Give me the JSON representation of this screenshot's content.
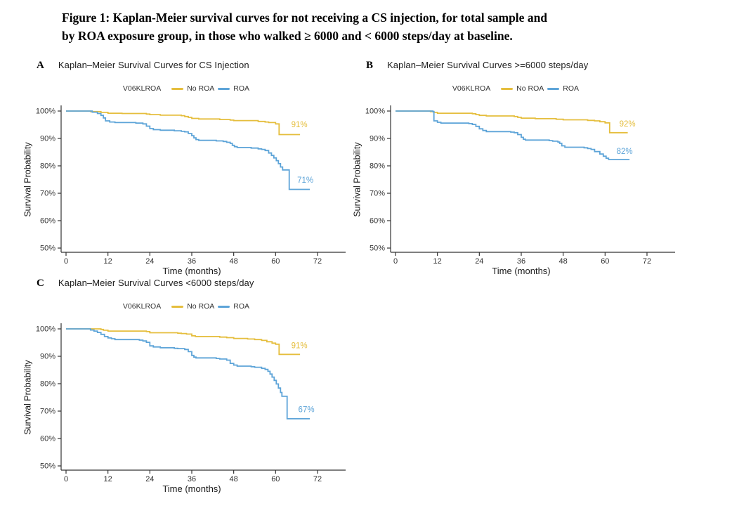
{
  "figure": {
    "title_lines": [
      "Figure 1: Kaplan-Meier survival curves for not receiving a CS injection, for total sample and",
      "by ROA exposure group, in those who walked ≥ 6000 and < 6000 steps/day at baseline."
    ]
  },
  "colors": {
    "no_roa": "#E5BE3D",
    "roa": "#5DA4D8",
    "axis": "#333333",
    "text": "#1a1a1a"
  },
  "chart_data": [
    {
      "type": "line",
      "subtype": "kaplan-meier-step",
      "panel_label": "A",
      "title": "Kaplan–Meier Survival Curves for CS Injection",
      "legend_title": "V06KLROA",
      "legend_position": "top",
      "grid": false,
      "xlabel": "Time (months)",
      "ylabel": "Survival Probability",
      "xlim": [
        0,
        72
      ],
      "ylim": [
        50,
        100
      ],
      "xticks": [
        0,
        12,
        24,
        36,
        48,
        60,
        72
      ],
      "yticks": [
        100,
        90,
        80,
        70,
        60,
        50
      ],
      "ytick_labels": [
        "100%",
        "90%",
        "80%",
        "70%",
        "60%",
        "50%"
      ],
      "series": [
        {
          "name": "No ROA",
          "color": "#E5BE3D",
          "annotation": {
            "label": "91%",
            "x": 66.8,
            "y": 95.0
          },
          "steps": [
            [
              0,
              100
            ],
            [
              7,
              99.8
            ],
            [
              10,
              99.5
            ],
            [
              12,
              99.2
            ],
            [
              16,
              99.1
            ],
            [
              23,
              98.9
            ],
            [
              24,
              98.7
            ],
            [
              27,
              98.5
            ],
            [
              33,
              98.3
            ],
            [
              34,
              98.0
            ],
            [
              35,
              97.7
            ],
            [
              36,
              97.3
            ],
            [
              38,
              97.1
            ],
            [
              44,
              96.9
            ],
            [
              47,
              96.7
            ],
            [
              48,
              96.5
            ],
            [
              55,
              96.2
            ],
            [
              57,
              96.0
            ],
            [
              58,
              95.8
            ],
            [
              60,
              95.3
            ],
            [
              61,
              91.4
            ],
            [
              67,
              91.4
            ]
          ]
        },
        {
          "name": "ROA",
          "color": "#5DA4D8",
          "annotation": {
            "label": "71%",
            "x": 68.5,
            "y": 74.8
          },
          "steps": [
            [
              0,
              100
            ],
            [
              7.5,
              99.6
            ],
            [
              9,
              99.1
            ],
            [
              10,
              98.4
            ],
            [
              10.7,
              97.5
            ],
            [
              11.3,
              96.4
            ],
            [
              12.5,
              96.0
            ],
            [
              14,
              95.8
            ],
            [
              20,
              95.6
            ],
            [
              22,
              95.3
            ],
            [
              23,
              94.5
            ],
            [
              24,
              93.6
            ],
            [
              25,
              93.2
            ],
            [
              27,
              93.0
            ],
            [
              31,
              92.8
            ],
            [
              33,
              92.6
            ],
            [
              34,
              92.4
            ],
            [
              35,
              91.8
            ],
            [
              36,
              91.0
            ],
            [
              36.6,
              90.2
            ],
            [
              37.2,
              89.6
            ],
            [
              38,
              89.3
            ],
            [
              43,
              89.1
            ],
            [
              45,
              88.9
            ],
            [
              46,
              88.6
            ],
            [
              47,
              88.2
            ],
            [
              47.6,
              87.5
            ],
            [
              48.2,
              87.0
            ],
            [
              49,
              86.7
            ],
            [
              53,
              86.5
            ],
            [
              55,
              86.2
            ],
            [
              56,
              86.0
            ],
            [
              57,
              85.6
            ],
            [
              58,
              84.7
            ],
            [
              58.8,
              83.8
            ],
            [
              59.5,
              82.9
            ],
            [
              60.2,
              81.9
            ],
            [
              60.8,
              80.8
            ],
            [
              61.4,
              79.6
            ],
            [
              62,
              78.5
            ],
            [
              63.5,
              78.5
            ],
            [
              63.9,
              71.4
            ],
            [
              69.8,
              71.4
            ]
          ]
        }
      ]
    },
    {
      "type": "line",
      "subtype": "kaplan-meier-step",
      "panel_label": "B",
      "title": "Kaplan–Meier Survival Curves >=6000 steps/day",
      "legend_title": "V06KLROA",
      "legend_position": "top",
      "grid": false,
      "xlabel": "Time (months)",
      "ylabel": "Survival Probability",
      "xlim": [
        0,
        72
      ],
      "ylim": [
        50,
        100
      ],
      "xticks": [
        0,
        12,
        24,
        36,
        48,
        60,
        72
      ],
      "yticks": [
        100,
        90,
        80,
        70,
        60,
        50
      ],
      "ytick_labels": [
        "100%",
        "90%",
        "80%",
        "70%",
        "60%",
        "50%"
      ],
      "series": [
        {
          "name": "No ROA",
          "color": "#E5BE3D",
          "annotation": {
            "label": "92%",
            "x": 66.4,
            "y": 95.3
          },
          "steps": [
            [
              0,
              100
            ],
            [
              10,
              99.8
            ],
            [
              11,
              99.5
            ],
            [
              12,
              99.2
            ],
            [
              22,
              99.0
            ],
            [
              23,
              98.7
            ],
            [
              24,
              98.4
            ],
            [
              26,
              98.2
            ],
            [
              34,
              98.0
            ],
            [
              35,
              97.7
            ],
            [
              36,
              97.4
            ],
            [
              40,
              97.2
            ],
            [
              46,
              97.0
            ],
            [
              48,
              96.8
            ],
            [
              55,
              96.6
            ],
            [
              57,
              96.4
            ],
            [
              58.5,
              96.1
            ],
            [
              60,
              95.7
            ],
            [
              61.3,
              92.1
            ],
            [
              66.5,
              92.1
            ]
          ]
        },
        {
          "name": "ROA",
          "color": "#5DA4D8",
          "annotation": {
            "label": "82%",
            "x": 65.6,
            "y": 85.3
          },
          "steps": [
            [
              0,
              100
            ],
            [
              10.7,
              99.8
            ],
            [
              11,
              96.4
            ],
            [
              12,
              95.9
            ],
            [
              13,
              95.6
            ],
            [
              21,
              95.4
            ],
            [
              22,
              95.1
            ],
            [
              23,
              94.4
            ],
            [
              24,
              93.5
            ],
            [
              25,
              92.9
            ],
            [
              26,
              92.5
            ],
            [
              33,
              92.3
            ],
            [
              34,
              92.1
            ],
            [
              35,
              91.4
            ],
            [
              36,
              90.4
            ],
            [
              36.6,
              89.7
            ],
            [
              37.2,
              89.4
            ],
            [
              44,
              89.2
            ],
            [
              45,
              89.0
            ],
            [
              46.5,
              88.7
            ],
            [
              47,
              88.2
            ],
            [
              47.6,
              87.3
            ],
            [
              48.5,
              86.8
            ],
            [
              54,
              86.6
            ],
            [
              55,
              86.3
            ],
            [
              56,
              86.0
            ],
            [
              57,
              85.2
            ],
            [
              58.5,
              84.3
            ],
            [
              59.5,
              83.5
            ],
            [
              60.3,
              82.8
            ],
            [
              61,
              82.3
            ],
            [
              67,
              82.3
            ]
          ]
        }
      ]
    },
    {
      "type": "line",
      "subtype": "kaplan-meier-step",
      "panel_label": "C",
      "title": "Kaplan–Meier Survival Curves <6000 steps/day",
      "legend_title": "V06KLROA",
      "legend_position": "top",
      "grid": false,
      "xlabel": "Time (months)",
      "ylabel": "Survival Probability",
      "xlim": [
        0,
        72
      ],
      "ylim": [
        50,
        100
      ],
      "xticks": [
        0,
        12,
        24,
        36,
        48,
        60,
        72
      ],
      "yticks": [
        100,
        90,
        80,
        70,
        60,
        50
      ],
      "ytick_labels": [
        "100%",
        "90%",
        "80%",
        "70%",
        "60%",
        "50%"
      ],
      "series": [
        {
          "name": "No ROA",
          "color": "#E5BE3D",
          "annotation": {
            "label": "91%",
            "x": 66.8,
            "y": 93.9
          },
          "steps": [
            [
              0,
              100
            ],
            [
              10,
              99.8
            ],
            [
              10.7,
              99.5
            ],
            [
              12,
              99.2
            ],
            [
              23,
              99.0
            ],
            [
              24,
              98.6
            ],
            [
              32,
              98.4
            ],
            [
              33,
              98.3
            ],
            [
              34.5,
              98.1
            ],
            [
              36,
              97.5
            ],
            [
              37,
              97.2
            ],
            [
              44,
              97.0
            ],
            [
              46,
              96.8
            ],
            [
              48,
              96.5
            ],
            [
              52,
              96.3
            ],
            [
              54,
              96.1
            ],
            [
              56,
              95.8
            ],
            [
              57.5,
              95.3
            ],
            [
              59,
              94.8
            ],
            [
              60,
              94.4
            ],
            [
              61,
              90.7
            ],
            [
              67,
              90.7
            ]
          ]
        },
        {
          "name": "ROA",
          "color": "#5DA4D8",
          "annotation": {
            "label": "67%",
            "x": 68.8,
            "y": 70.5
          },
          "steps": [
            [
              0,
              100
            ],
            [
              7,
              99.6
            ],
            [
              8,
              99.2
            ],
            [
              9,
              98.7
            ],
            [
              10,
              98.0
            ],
            [
              11,
              97.2
            ],
            [
              12,
              96.7
            ],
            [
              13,
              96.4
            ],
            [
              14,
              96.1
            ],
            [
              21,
              95.9
            ],
            [
              22,
              95.6
            ],
            [
              23,
              95.1
            ],
            [
              24,
              93.8
            ],
            [
              25,
              93.4
            ],
            [
              27,
              93.1
            ],
            [
              31,
              92.9
            ],
            [
              32,
              92.8
            ],
            [
              34,
              92.5
            ],
            [
              35,
              91.7
            ],
            [
              36,
              90.3
            ],
            [
              36.6,
              89.7
            ],
            [
              37.2,
              89.4
            ],
            [
              43,
              89.2
            ],
            [
              44,
              89.0
            ],
            [
              46,
              88.6
            ],
            [
              47,
              87.4
            ],
            [
              48,
              86.8
            ],
            [
              49,
              86.4
            ],
            [
              53,
              86.2
            ],
            [
              54,
              86.0
            ],
            [
              56,
              85.6
            ],
            [
              57,
              85.2
            ],
            [
              57.8,
              84.5
            ],
            [
              58.4,
              83.5
            ],
            [
              59,
              82.4
            ],
            [
              59.6,
              81.2
            ],
            [
              60.2,
              79.9
            ],
            [
              60.8,
              78.4
            ],
            [
              61.4,
              76.8
            ],
            [
              61.8,
              75.4
            ],
            [
              63,
              75.4
            ],
            [
              63.3,
              67.2
            ],
            [
              69.8,
              67.2
            ]
          ]
        }
      ]
    }
  ]
}
